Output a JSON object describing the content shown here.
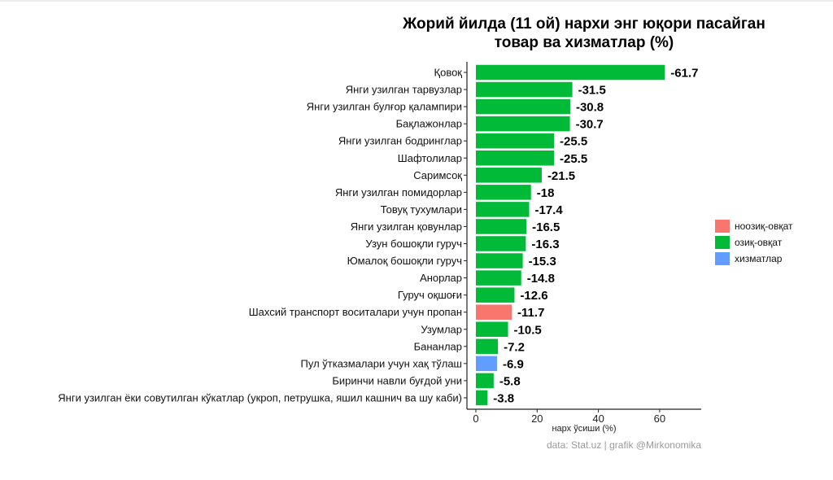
{
  "chart_data": {
    "type": "bar",
    "orientation": "horizontal",
    "title_lines": [
      "Жорий йилда (11 ой) нархи энг юқори пасайган",
      "товар ва хизматлар (%)"
    ],
    "xlabel": "нарх ўсиши (%)",
    "caption": "data:  Stat.uz | grafik @Mirkonomika",
    "xlim": [
      0,
      73
    ],
    "xticks": [
      0,
      20,
      40,
      60
    ],
    "legend_position": "right",
    "groups": [
      {
        "key": "non_food",
        "label": "ноозиқ-овқат",
        "color": "#F8766D"
      },
      {
        "key": "food",
        "label": "озиқ-овқат",
        "color": "#00BA38"
      },
      {
        "key": "services",
        "label": "хизматлар",
        "color": "#619CFF"
      }
    ],
    "items": [
      {
        "label": "Қовоқ",
        "bar": 61.7,
        "value_label": "-61.7",
        "group": "food"
      },
      {
        "label": "Янги узилган тарвузлар",
        "bar": 31.5,
        "value_label": "-31.5",
        "group": "food"
      },
      {
        "label": "Янги узилган булғор қалампири",
        "bar": 30.8,
        "value_label": "-30.8",
        "group": "food"
      },
      {
        "label": "Бақлажонлар",
        "bar": 30.7,
        "value_label": "-30.7",
        "group": "food"
      },
      {
        "label": "Янги узилган бодринглар",
        "bar": 25.5,
        "value_label": "-25.5",
        "group": "food"
      },
      {
        "label": "Шафтолилар",
        "bar": 25.5,
        "value_label": "-25.5",
        "group": "food"
      },
      {
        "label": "Саримсоқ",
        "bar": 21.5,
        "value_label": "-21.5",
        "group": "food"
      },
      {
        "label": "Янги узилган помидорлар",
        "bar": 18,
        "value_label": "-18",
        "group": "food"
      },
      {
        "label": "Товуқ тухумлари",
        "bar": 17.4,
        "value_label": "-17.4",
        "group": "food"
      },
      {
        "label": "Янги узилган қовунлар",
        "bar": 16.5,
        "value_label": "-16.5",
        "group": "food"
      },
      {
        "label": "Узун бошоқли гуруч",
        "bar": 16.3,
        "value_label": "-16.3",
        "group": "food"
      },
      {
        "label": "Юмалоқ бошоқли гуруч",
        "bar": 15.3,
        "value_label": "-15.3",
        "group": "food"
      },
      {
        "label": "Анорлар",
        "bar": 14.8,
        "value_label": "-14.8",
        "group": "food"
      },
      {
        "label": "Гуруч оқшоғи",
        "bar": 12.6,
        "value_label": "-12.6",
        "group": "food"
      },
      {
        "label": "Шахсий транспорт воситалари учун пропан",
        "bar": 11.7,
        "value_label": "-11.7",
        "group": "non_food"
      },
      {
        "label": "Узумлар",
        "bar": 10.5,
        "value_label": "-10.5",
        "group": "food"
      },
      {
        "label": "Бананлар",
        "bar": 7.2,
        "value_label": "-7.2",
        "group": "food"
      },
      {
        "label": "Пул ўтказмалари учун хақ тўлаш",
        "bar": 6.9,
        "value_label": "-6.9",
        "group": "services"
      },
      {
        "label": "Биринчи навли буғдой уни",
        "bar": 5.8,
        "value_label": "-5.8",
        "group": "food"
      },
      {
        "label": "Янги узилган ёки совутилган кўкатлар (укроп, петрушка, яшил кашнич ва шу каби)",
        "bar": 3.8,
        "value_label": "-3.8",
        "group": "food"
      }
    ]
  }
}
